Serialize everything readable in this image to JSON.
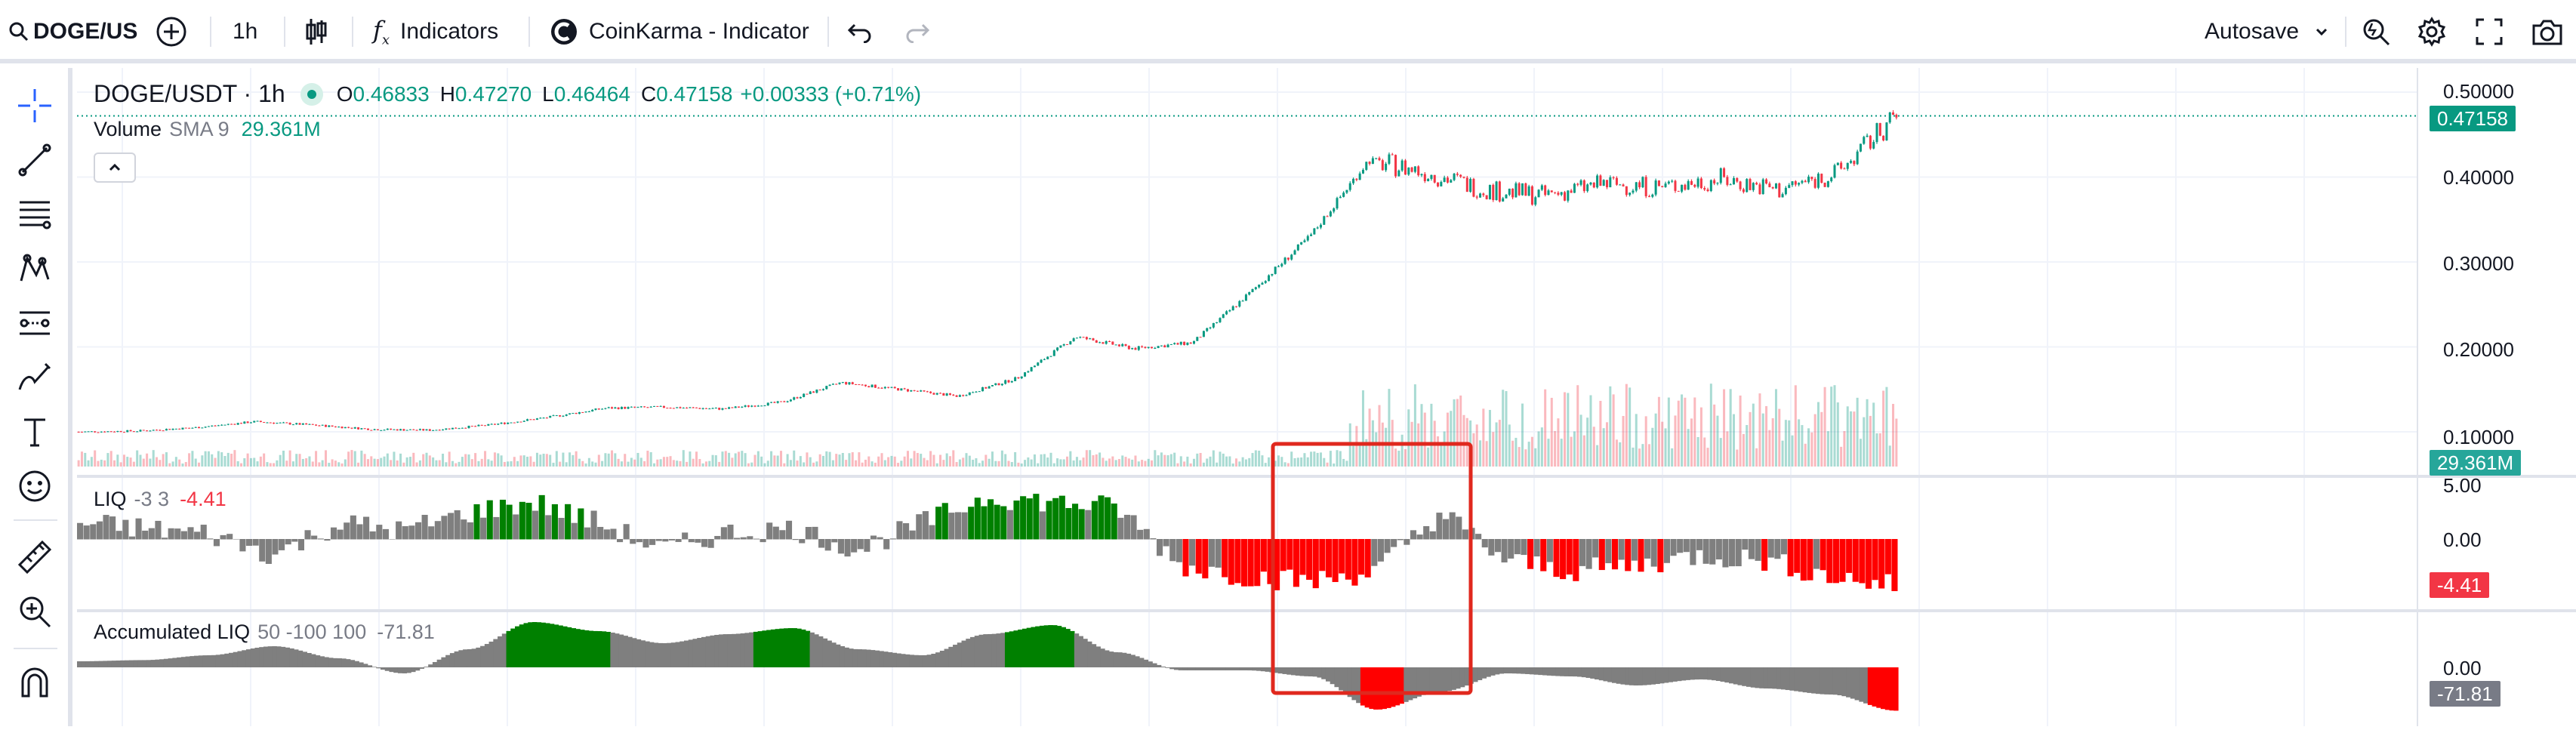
{
  "toolbar": {
    "symbol": "DOGE/US",
    "interval": "1h",
    "indicators_label": "Indicators",
    "coinkarma_label": "CoinKarma - Indicator",
    "autosave_label": "Autosave"
  },
  "chart": {
    "legend": {
      "symbol_interval": "DOGE/USDT · 1h",
      "o_label": "O",
      "o_value": "0.46833",
      "h_label": "H",
      "h_value": "0.47270",
      "l_label": "L",
      "l_value": "0.46464",
      "c_label": "C",
      "c_value": "0.47158",
      "change": "+0.00333 (+0.71%)"
    },
    "volume_legend": {
      "name": "Volume",
      "params": "SMA 9",
      "value": "29.361M"
    },
    "price_axis": [
      "0.50000",
      "0.40000",
      "0.30000",
      "0.20000",
      "0.10000"
    ],
    "current_price_tag": "0.47158",
    "volume_tag": "29.361M",
    "liq": {
      "name": "LIQ",
      "params": "-3 3",
      "value": "-4.41",
      "axis": [
        "5.00",
        "0.00"
      ],
      "tag": "-4.41"
    },
    "acc_liq": {
      "name": "Accumulated LIQ",
      "params": "50 -100 100",
      "value": "-71.81",
      "axis": [
        "0.00"
      ],
      "tag": "-71.81"
    }
  },
  "colors": {
    "up": "#089981",
    "down": "#f23645",
    "liq_gray": "#7f7f7f",
    "liq_green": "#008000",
    "liq_red": "#ff0000",
    "acc_gray": "#7f7f7f",
    "highlight_box": "#e0281e"
  },
  "chart_data": {
    "type": "candlestick",
    "series": [
      {
        "name": "DOGE/USDT",
        "values": [
          0.1,
          0.101,
          0.105,
          0.112,
          0.108,
          0.103,
          0.102,
          0.108,
          0.117,
          0.128,
          0.129,
          0.127,
          0.135,
          0.158,
          0.15,
          0.142,
          0.163,
          0.212,
          0.198,
          0.205,
          0.265,
          0.33,
          0.42,
          0.405,
          0.385,
          0.378,
          0.392,
          0.388,
          0.398,
          0.385,
          0.405,
          0.472
        ]
      },
      {
        "name": "LIQ",
        "values": [
          1.5,
          1.0,
          0.5,
          -1.5,
          1.5,
          0.8,
          2.5,
          3.5,
          1.5,
          -1.0,
          0.6,
          1.0,
          -1.0,
          1.5,
          4.0,
          3.5,
          3.0,
          -2.5,
          -3.5,
          -4.0,
          -3.0,
          2.5,
          -2.0,
          -3.0,
          -2.5,
          -1.5,
          -2.0,
          -3.5,
          -4.41
        ]
      },
      {
        "name": "Accumulated LIQ",
        "values": [
          10,
          12,
          20,
          35,
          15,
          -10,
          30,
          75,
          60,
          40,
          55,
          65,
          30,
          20,
          55,
          70,
          25,
          -5,
          -5,
          -15,
          -70,
          -40,
          -10,
          -15,
          -30,
          -20,
          -35,
          -45,
          -71.81
        ]
      }
    ]
  }
}
